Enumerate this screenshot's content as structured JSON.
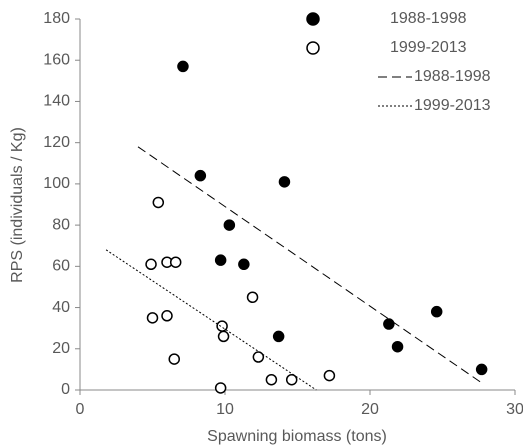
{
  "chart_data": {
    "type": "scatter",
    "xlabel": "Spawning biomass (tons)",
    "ylabel": "RPS (individuals / Kg)",
    "xlim": [
      0,
      30
    ],
    "xticks": [
      0,
      10,
      20,
      30
    ],
    "ylim": [
      0,
      180
    ],
    "yticks": [
      0,
      20,
      40,
      60,
      80,
      100,
      120,
      140,
      160,
      180
    ],
    "legend": "upper right",
    "series": [
      {
        "name": "1988-1998",
        "color": "#000000",
        "marker": "filled",
        "x": [
          7.1,
          8.3,
          14.1,
          10.3,
          9.7,
          11.3,
          13.7,
          21.3,
          21.9,
          24.6,
          27.7
        ],
        "values": [
          157,
          104,
          101,
          80,
          63,
          61,
          26,
          32,
          21,
          38,
          10
        ]
      },
      {
        "name": "1999-2013",
        "color": "#000000",
        "marker": "open",
        "x": [
          5.4,
          4.9,
          6.0,
          6.6,
          5.0,
          6.0,
          6.5,
          9.8,
          9.9,
          9.7,
          11.9,
          12.3,
          13.2,
          14.6,
          17.2
        ],
        "values": [
          91,
          61,
          62,
          62,
          35,
          36,
          15,
          31,
          26,
          1,
          45,
          16,
          5,
          5,
          7
        ]
      },
      {
        "name": "1988-1998",
        "color": "#000000",
        "line": "dashed",
        "x": [
          4.0,
          27.8
        ],
        "values": [
          118,
          3
        ]
      },
      {
        "name": "1999-2013",
        "color": "#000000",
        "line": "dotted",
        "x": [
          1.8,
          16.3
        ],
        "values": [
          68,
          0
        ]
      }
    ]
  }
}
